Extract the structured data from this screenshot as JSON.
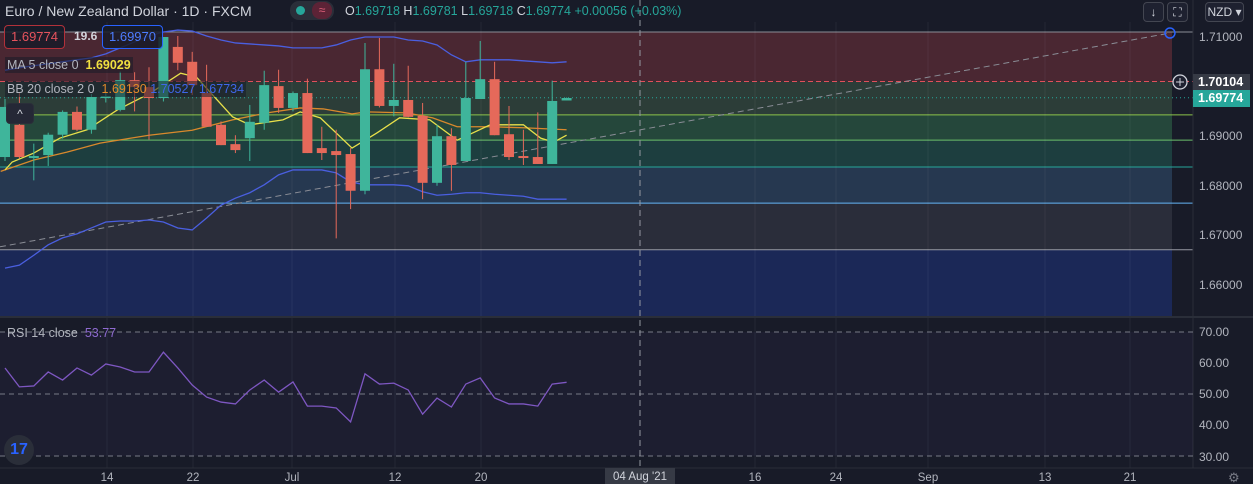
{
  "header": {
    "symbol_title": "Euro / New Zealand Dollar · 1D · FXCM",
    "toggle_icon": "wave-icon",
    "ohlc": {
      "o_label": "O",
      "o": "1.69718",
      "h_label": "H",
      "h": "1.69781",
      "l_label": "L",
      "l": "1.69718",
      "c_label": "C",
      "c": "1.69774",
      "change": "+0.00056 (+0.03%)"
    }
  },
  "trade": {
    "sell": "1.69774",
    "spread": "19.6",
    "buy": "1.69970"
  },
  "indicators": {
    "ma": {
      "label": "MA 5 close 0",
      "value": "1.69029"
    },
    "bb": {
      "label": "BB 20 close 2 0",
      "basis": "1.69130",
      "upper": "1.70527",
      "lower": "1.67734"
    },
    "rsi": {
      "label": "RSI 14 close",
      "value": "53.77"
    }
  },
  "toolbar": {
    "currency": "NZD ▾",
    "scroll_down": "↓",
    "fullscreen": "⛶",
    "collapse": "^"
  },
  "colors": {
    "up": "#3fb59b",
    "down": "#e5695a",
    "ma": "#e8e04a",
    "basis": "#d9892c",
    "band": "#4a5fe0",
    "rsi": "#7e57c2",
    "current": "#26a69a"
  },
  "price_axis": {
    "labels": [
      "1.71000",
      "1.69000",
      "1.68000",
      "1.67000",
      "1.66000"
    ],
    "crosshair_price": "1.70104",
    "current_price": "1.69774"
  },
  "rsi_axis": {
    "labels": [
      "70.00",
      "60.00",
      "50.00",
      "40.00",
      "30.00"
    ]
  },
  "time_axis": {
    "labels": [
      "14",
      "22",
      "Jul",
      "12",
      "20",
      "16",
      "24",
      "Sep",
      "13",
      "21"
    ],
    "crosshair_date": "04 Aug '21"
  },
  "chart_data": {
    "type": "candlestick",
    "title": "Euro / New Zealand Dollar 1D",
    "ylim": [
      1.655,
      1.712
    ],
    "candles_ohlc": [
      [
        1.6858,
        1.6975,
        1.685,
        1.6959
      ],
      [
        1.6923,
        1.6987,
        1.6855,
        1.6858
      ],
      [
        1.686,
        1.6885,
        1.6811,
        1.686
      ],
      [
        1.6862,
        1.6907,
        1.684,
        1.6903
      ],
      [
        1.6903,
        1.6952,
        1.6895,
        1.6949
      ],
      [
        1.6949,
        1.696,
        1.691,
        1.6913
      ],
      [
        1.6913,
        1.6985,
        1.6905,
        1.6979
      ],
      [
        1.6979,
        1.699,
        1.6968,
        1.6981
      ],
      [
        1.6953,
        1.703,
        1.695,
        1.7013
      ],
      [
        1.7013,
        1.7029,
        1.695,
        1.6999
      ],
      [
        1.6999,
        1.7039,
        1.6893,
        1.6977
      ],
      [
        1.6977,
        1.71,
        1.697,
        1.71
      ],
      [
        1.708,
        1.7102,
        1.7033,
        1.7048
      ],
      [
        1.705,
        1.707,
        1.6983,
        1.7003
      ],
      [
        1.6987,
        1.7044,
        1.6919,
        1.6919
      ],
      [
        1.6923,
        1.693,
        1.6882,
        1.6882
      ],
      [
        1.6884,
        1.6902,
        1.6866,
        1.6872
      ],
      [
        1.6896,
        1.6963,
        1.685,
        1.6929
      ],
      [
        1.6927,
        1.7032,
        1.6913,
        1.7003
      ],
      [
        1.7001,
        1.7034,
        1.6947,
        1.6957
      ],
      [
        1.6957,
        1.699,
        1.695,
        1.6987
      ],
      [
        1.6987,
        1.7016,
        1.6866,
        1.6866
      ],
      [
        1.6876,
        1.6919,
        1.6852,
        1.6866
      ],
      [
        1.687,
        1.6913,
        1.6694,
        1.6862
      ],
      [
        1.6864,
        1.6876,
        1.6753,
        1.679
      ],
      [
        1.679,
        1.7088,
        1.6783,
        1.7035
      ],
      [
        1.7035,
        1.7098,
        1.6958,
        1.6961
      ],
      [
        1.6961,
        1.7046,
        1.694,
        1.6973
      ],
      [
        1.6973,
        1.7042,
        1.6938,
        1.6939
      ],
      [
        1.6941,
        1.6967,
        1.6773,
        1.6806
      ],
      [
        1.6806,
        1.6923,
        1.68,
        1.69
      ],
      [
        1.69,
        1.6916,
        1.679,
        1.6842
      ],
      [
        1.685,
        1.705,
        1.685,
        1.6977
      ],
      [
        1.6975,
        1.7092,
        1.6975,
        1.7015
      ],
      [
        1.7015,
        1.705,
        1.6902,
        1.6902
      ],
      [
        1.6904,
        1.6961,
        1.6852,
        1.6858
      ],
      [
        1.686,
        1.6913,
        1.6842,
        1.6856
      ],
      [
        1.6858,
        1.6948,
        1.6844,
        1.6844
      ],
      [
        1.6844,
        1.7012,
        1.6844,
        1.6971
      ],
      [
        1.6972,
        1.6978,
        1.6972,
        1.6977
      ]
    ],
    "bb_upper": [
      1.7033,
      1.7038,
      1.7042,
      1.7046,
      1.705,
      1.7054,
      1.7058,
      1.7066,
      1.7078,
      1.709,
      1.7102,
      1.711,
      1.7114,
      1.7112,
      1.7102,
      1.7094,
      1.7088,
      1.7086,
      1.7084,
      1.7082,
      1.7078,
      1.7078,
      1.7078,
      1.7084,
      1.7094,
      1.71,
      1.71,
      1.71,
      1.7094,
      1.7092,
      1.7084,
      1.7064,
      1.705,
      1.7054,
      1.7054,
      1.7054,
      1.7052,
      1.705,
      1.7048,
      1.705
    ],
    "bb_lower": [
      1.6634,
      1.664,
      1.666,
      1.6681,
      1.6695,
      1.6703,
      1.6715,
      1.6727,
      1.6729,
      1.6729,
      1.6731,
      1.6727,
      1.6715,
      1.6711,
      1.6735,
      1.6761,
      1.6775,
      1.6786,
      1.6802,
      1.6822,
      1.6832,
      1.6832,
      1.6832,
      1.6826,
      1.6808,
      1.6802,
      1.6802,
      1.6802,
      1.68,
      1.6788,
      1.6781,
      1.6783,
      1.6786,
      1.6786,
      1.6783,
      1.6781,
      1.6779,
      1.6773,
      1.6773,
      1.6773
    ],
    "bb_basis_points": [
      [
        -0.3,
        1.6829
      ],
      [
        2,
        1.6852
      ],
      [
        4.3,
        1.6868
      ],
      [
        6.6,
        1.6886
      ],
      [
        10,
        1.6902
      ],
      [
        13,
        1.6912
      ],
      [
        15.8,
        1.6933
      ],
      [
        18.2,
        1.6947
      ],
      [
        20.5,
        1.6957
      ],
      [
        22.1,
        1.6955
      ],
      [
        24.1,
        1.6945
      ],
      [
        25.1,
        1.6949
      ],
      [
        27.9,
        1.6947
      ],
      [
        29.7,
        1.6937
      ],
      [
        31.4,
        1.6919
      ],
      [
        33.7,
        1.6919
      ],
      [
        36,
        1.6917
      ],
      [
        39,
        1.6913
      ]
    ],
    "ma5_points": [
      [
        0,
        1.6832
      ],
      [
        0.5,
        1.6848
      ],
      [
        2,
        1.6866
      ],
      [
        3.8,
        1.6896
      ],
      [
        5.7,
        1.6913
      ],
      [
        7.8,
        1.6953
      ],
      [
        10.1,
        1.6987
      ],
      [
        12.2,
        1.7027
      ],
      [
        13.3,
        1.7019
      ],
      [
        15.8,
        1.6939
      ],
      [
        17,
        1.6923
      ],
      [
        19.3,
        1.6933
      ],
      [
        20.5,
        1.6949
      ],
      [
        21.9,
        1.6937
      ],
      [
        24.1,
        1.6876
      ],
      [
        25.8,
        1.6906
      ],
      [
        27.4,
        1.6937
      ],
      [
        29.5,
        1.6933
      ],
      [
        31.4,
        1.6892
      ],
      [
        33.7,
        1.6923
      ],
      [
        36,
        1.6923
      ],
      [
        37.2,
        1.6896
      ],
      [
        38.1,
        1.6888
      ],
      [
        39,
        1.6902
      ]
    ],
    "rsi": [
      58.4,
      52.3,
      52.6,
      57.1,
      54.5,
      58.4,
      56.1,
      59.7,
      58.7,
      57.1,
      57.1,
      63.5,
      58.4,
      52.9,
      49.0,
      47.4,
      46.8,
      51.3,
      54.5,
      50.6,
      53.9,
      46.1,
      46.1,
      45.5,
      41.0,
      56.5,
      53.2,
      53.5,
      51.3,
      43.5,
      48.7,
      45.8,
      53.2,
      55.2,
      48.7,
      46.8,
      46.8,
      46.1,
      53.2,
      53.77
    ],
    "rsi_levels": [
      70,
      50,
      30
    ],
    "trendline": [
      [
        -0.35,
        1.6677
      ],
      [
        80.9,
        1.7108
      ]
    ],
    "fib_levels": [
      1.711,
      1.70104,
      1.6943,
      1.6892,
      1.6838,
      1.6765,
      1.6671
    ],
    "fib_colors": [
      "#4a2732",
      "#2c3d38",
      "#25473b",
      "#1d3e3f",
      "#263850",
      "#2a2d3a",
      "#1b2857"
    ]
  }
}
